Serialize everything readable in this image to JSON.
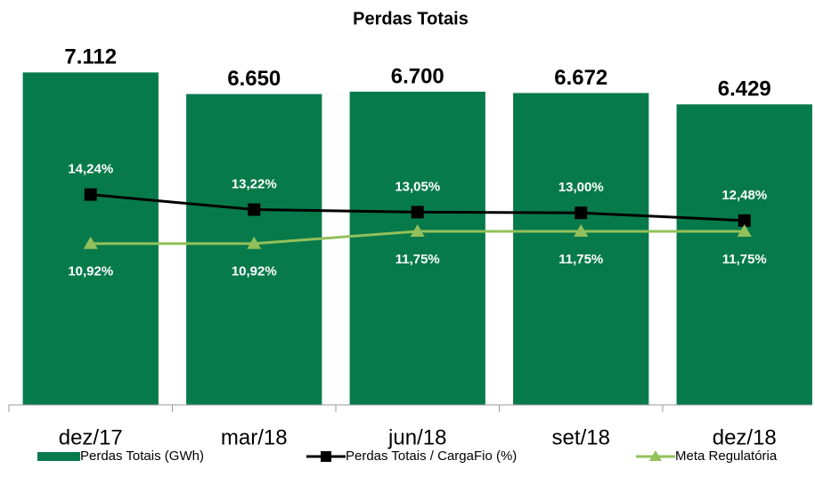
{
  "chart_data": {
    "type": "bar_line",
    "title": "Perdas Totais",
    "categories": [
      "dez/17",
      "mar/18",
      "jun/18",
      "set/18",
      "dez/18"
    ],
    "ylim": [
      0,
      7900
    ],
    "y2lim": [
      0,
      25
    ],
    "series": [
      {
        "name": "Perdas Totais (GWh)",
        "type": "bar",
        "color": "#077a4b",
        "values": [
          7112,
          6650,
          6700,
          6672,
          6429
        ],
        "value_labels": [
          "7.112",
          "6.650",
          "6.700",
          "6.672",
          "6.429"
        ]
      },
      {
        "name": "Perdas Totais / CargaFio (%)",
        "type": "line",
        "axis": "y2",
        "color": "#000000",
        "marker": "square",
        "values": [
          14.24,
          13.22,
          13.05,
          13.0,
          12.48
        ],
        "value_labels": [
          "14,24%",
          "13,22%",
          "13,05%",
          "13,00%",
          "12,48%"
        ]
      },
      {
        "name": "Meta Regulatória",
        "type": "line",
        "axis": "y2",
        "color": "#92c05a",
        "marker": "triangle",
        "values": [
          10.92,
          10.92,
          11.75,
          11.75,
          11.75
        ],
        "value_labels": [
          "10,92%",
          "10,92%",
          "11,75%",
          "11,75%",
          "11,75%"
        ]
      }
    ]
  }
}
